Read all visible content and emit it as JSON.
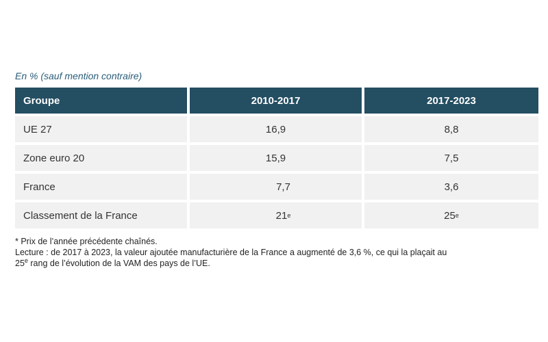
{
  "unit_note": "En % (sauf mention contraire)",
  "table": {
    "headers": [
      "Groupe",
      "2010-2017",
      "2017-2023"
    ],
    "rows": [
      {
        "groupe": "UE 27",
        "p1": "16,9",
        "p2": "8,8"
      },
      {
        "groupe": "Zone euro 20",
        "p1": "15,9",
        "p2": "7,5"
      },
      {
        "groupe": "France",
        "p1": "7,7",
        "p2": "3,6"
      },
      {
        "groupe": "Classement de la France",
        "p1": "21",
        "p1_sup": "e",
        "p2": "25",
        "p2_sup": "e"
      }
    ]
  },
  "footnotes": {
    "asterisk": "* Prix de l’année précédente chaînés.",
    "lecture_1": "Lecture : de 2017 à 2023, la valeur ajoutée manufacturière de la France a augmenté de 3,6 %, ce qui la plaçait au",
    "lecture_2_num": "25",
    "lecture_2_sup": "e",
    "lecture_2_rest": " rang de l’évolution de la VAM des pays de l’UE."
  }
}
